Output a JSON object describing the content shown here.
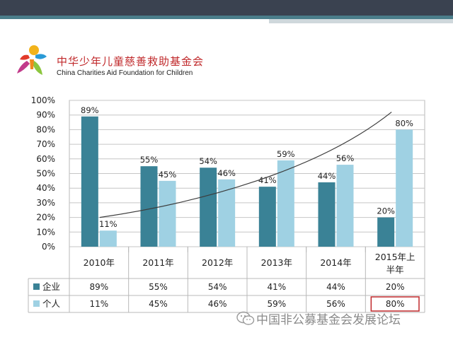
{
  "organization": {
    "name_cn": "中华少年儿童慈善救助基金会",
    "name_en": "China Charities Aid Foundation for Children"
  },
  "chart_data": {
    "type": "bar",
    "categories": [
      "2010年",
      "2011年",
      "2012年",
      "2013年",
      "2014年",
      "2015年上半年"
    ],
    "series": [
      {
        "name": "企业",
        "values": [
          89,
          55,
          54,
          41,
          44,
          20
        ],
        "labels": [
          "89%",
          "55%",
          "54%",
          "41%",
          "44%",
          "20%"
        ],
        "color": "#3a8296"
      },
      {
        "name": "个人",
        "values": [
          11,
          45,
          46,
          59,
          56,
          80
        ],
        "labels": [
          "11%",
          "45%",
          "46%",
          "59%",
          "56%",
          "80%"
        ],
        "color": "#9fd1e3"
      }
    ],
    "ytick_labels": [
      "0%",
      "10%",
      "20%",
      "30%",
      "40%",
      "50%",
      "60%",
      "70%",
      "80%",
      "90%",
      "100%"
    ],
    "ylim": [
      0,
      100
    ],
    "grid": true,
    "legend": "data-table-rows",
    "trendline": "individual share rising curve",
    "highlighted_cell": "个人 · 2015年上半年"
  },
  "watermark": {
    "text": "中国非公募基金会发展论坛",
    "icon": "wechat-icon"
  }
}
